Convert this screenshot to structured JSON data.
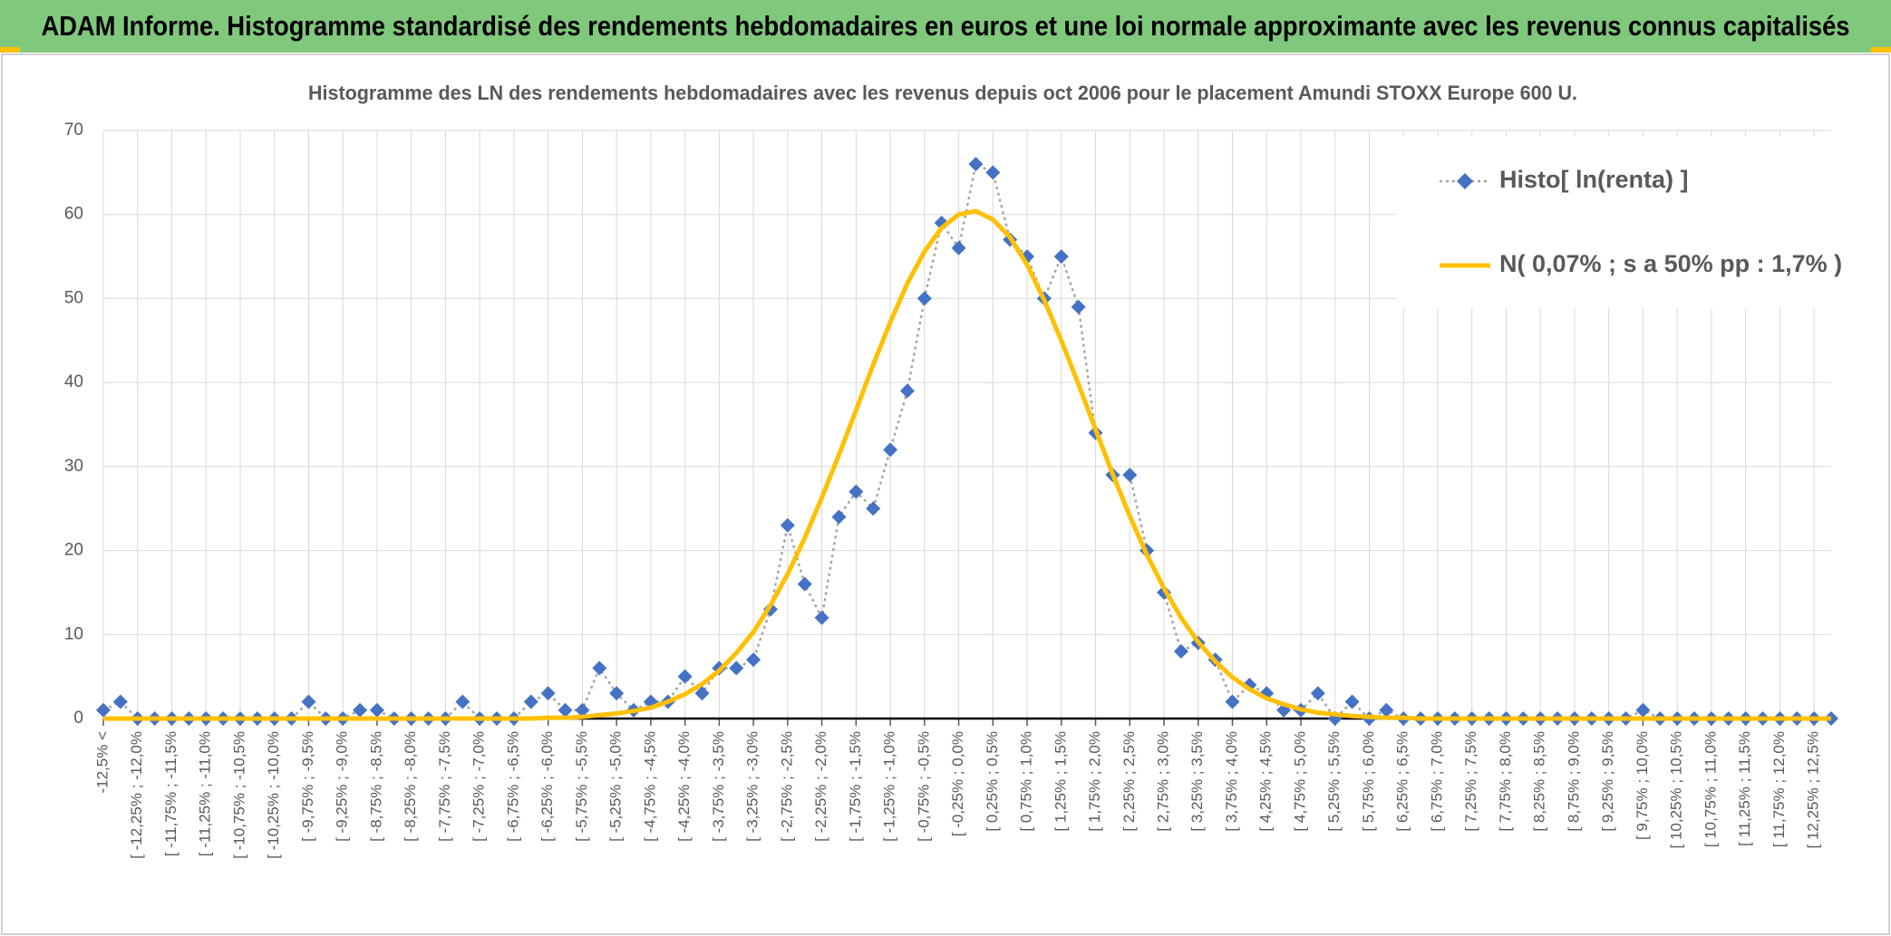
{
  "header": {
    "title": "ADAM Informe. Histogramme standardisé des rendements hebdomadaires en euros et une loi normale approximante avec les revenus connus capitalisés"
  },
  "chart_data": {
    "type": "line",
    "title": "Histogramme des LN des rendements hebdomadaires avec les revenus depuis oct 2006 pour le placement Amundi STOXX Europe 600 U.",
    "categories": [
      "-12,5% <",
      null,
      "[ -12,25% ; -12,0%",
      null,
      "[ -11,75% ; -11,5%",
      null,
      "[ -11,25% ; -11,0%",
      null,
      "[ -10,75% ; -10,5%",
      null,
      "[ -10,25% ; -10,0%",
      null,
      "[ -9,75% ; -9,5%",
      null,
      "[ -9,25% ; -9,0%",
      null,
      "[ -8,75% ; -8,5%",
      null,
      "[ -8,25% ; -8,0%",
      null,
      "[ -7,75% ; -7,5%",
      null,
      "[ -7,25% ; -7,0%",
      null,
      "[ -6,75% ; -6,5%",
      null,
      "[ -6,25% ; -6,0%",
      null,
      "[ -5,75% ; -5,5%",
      null,
      "[ -5,25% ; -5,0%",
      null,
      "[ -4,75% ; -4,5%",
      null,
      "[ -4,25% ; -4,0%",
      null,
      "[ -3,75% ; -3,5%",
      null,
      "[ -3,25% ; -3,0%",
      null,
      "[ -2,75% ; -2,5%",
      null,
      "[ -2,25% ; -2,0%",
      null,
      "[ -1,75% ; -1,5%",
      null,
      "[ -1,25% ; -1,0%",
      null,
      "[ -0,75% ; -0,5%",
      null,
      "[ -0,25% ; 0,0%",
      null,
      "[ 0,25% ; 0,5%",
      null,
      "[ 0,75% ; 1,0%",
      null,
      "[ 1,25% ; 1,5%",
      null,
      "[ 1,75% ; 2,0%",
      null,
      "[ 2,25% ; 2,5%",
      null,
      "[ 2,75% ; 3,0%",
      null,
      "[ 3,25% ; 3,5%",
      null,
      "[ 3,75% ; 4,0%",
      null,
      "[ 4,25% ; 4,5%",
      null,
      "[ 4,75% ; 5,0%",
      null,
      "[ 5,25% ; 5,5%",
      null,
      "[ 5,75% ; 6,0%",
      null,
      "[ 6,25% ; 6,5%",
      null,
      "[ 6,75% ; 7,0%",
      null,
      "[ 7,25% ; 7,5%",
      null,
      "[ 7,75% ; 8,0%",
      null,
      "[ 8,25% ; 8,5%",
      null,
      "[ 8,75% ; 9,0%",
      null,
      "[ 9,25% ; 9,5%",
      null,
      "[ 9,75% ; 10,0%",
      null,
      "[ 10,25% ; 10,5%",
      null,
      "[ 10,75% ; 11,0%",
      null,
      "[ 11,25% ; 11,5%",
      null,
      "[ 11,75% ; 12,0%",
      null,
      "[ 12,25% ; 12,5%",
      null
    ],
    "series": [
      {
        "name": "Histo[ ln(renta) ]",
        "color": "#4472c4",
        "line_color": "#a5a5a5",
        "markers": true,
        "values": [
          1,
          2,
          0,
          0,
          0,
          0,
          0,
          0,
          0,
          0,
          0,
          0,
          2,
          0,
          0,
          1,
          1,
          0,
          0,
          0,
          0,
          2,
          0,
          0,
          0,
          2,
          3,
          1,
          1,
          6,
          3,
          1,
          2,
          2,
          5,
          3,
          6,
          6,
          7,
          13,
          23,
          16,
          12,
          24,
          27,
          25,
          32,
          39,
          50,
          59,
          56,
          66,
          65,
          57,
          55,
          50,
          55,
          49,
          34,
          29,
          29,
          20,
          15,
          8,
          9,
          7,
          2,
          4,
          3,
          1,
          1,
          3,
          0,
          2,
          0,
          1,
          0,
          0,
          0,
          0,
          0,
          0,
          0,
          0,
          0,
          0,
          0,
          0,
          0,
          0,
          1,
          0,
          0,
          0,
          0,
          0,
          0,
          0,
          0,
          0,
          0,
          0
        ]
      },
      {
        "name": "N( 0,07% ; s a 50% pp : 1,7% )",
        "color": "#ffc000",
        "markers": false,
        "values": [
          0,
          0,
          0,
          0,
          0,
          0,
          0,
          0,
          0,
          0,
          0,
          0,
          0,
          0,
          0,
          0,
          0,
          0,
          0,
          0,
          0,
          0,
          0,
          0,
          0,
          0,
          0.1,
          0.1,
          0.2,
          0.4,
          0.6,
          0.9,
          1.3,
          2.0,
          2.9,
          4.1,
          5.7,
          7.8,
          10.3,
          13.5,
          17.2,
          21.5,
          26.3,
          31.4,
          36.7,
          42.1,
          47.2,
          51.8,
          55.6,
          58.4,
          60.0,
          60.4,
          59.4,
          57.3,
          54.0,
          49.8,
          45.0,
          39.8,
          34.4,
          29.1,
          24.1,
          19.5,
          15.5,
          12.0,
          9.1,
          6.8,
          4.9,
          3.5,
          2.4,
          1.7,
          1.1,
          0.7,
          0.5,
          0.3,
          0.2,
          0.1,
          0.1,
          0,
          0,
          0,
          0,
          0,
          0,
          0,
          0,
          0,
          0,
          0,
          0,
          0,
          0,
          0,
          0,
          0,
          0,
          0,
          0,
          0,
          0,
          0,
          0,
          0
        ]
      }
    ],
    "ylim": [
      0,
      70
    ],
    "yticks": [
      0,
      10,
      20,
      30,
      40,
      50,
      60,
      70
    ],
    "grid": true,
    "legend": "upper right"
  }
}
